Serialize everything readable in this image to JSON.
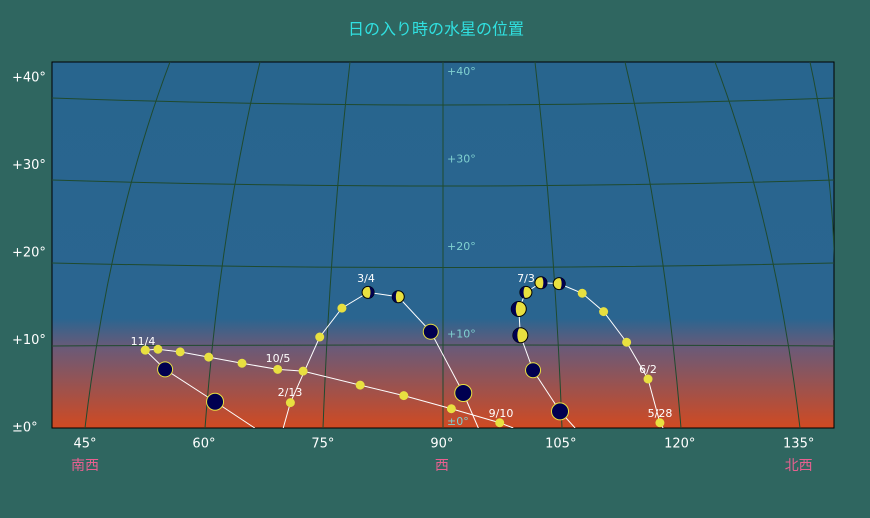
{
  "title": "日の入り時の水星の位置",
  "alt_labels": [
    {
      "value": 0,
      "label": "±0°"
    },
    {
      "value": 10,
      "label": "+10°"
    },
    {
      "value": 20,
      "label": "+20°"
    },
    {
      "value": 30,
      "label": "+30°"
    },
    {
      "value": 40,
      "label": "+40°"
    }
  ],
  "az_labels": [
    {
      "value": 45,
      "label": "45°"
    },
    {
      "value": 60,
      "label": "60°"
    },
    {
      "value": 75,
      "label": "75°"
    },
    {
      "value": 90,
      "label": "90°"
    },
    {
      "value": 105,
      "label": "105°"
    },
    {
      "value": 120,
      "label": "120°"
    },
    {
      "value": 135,
      "label": "135°"
    }
  ],
  "directions": [
    {
      "value": 45,
      "label": "南西"
    },
    {
      "value": 90,
      "label": "西"
    },
    {
      "value": 135,
      "label": "北西"
    }
  ],
  "tracks": [
    {
      "az": [
        52.6,
        55.1,
        61.4,
        66.4
      ],
      "alt": [
        8.9,
        6.7,
        3.0,
        0
      ],
      "colors": [
        "#e8e040",
        "#000050",
        "#000050",
        null
      ]
    },
    {
      "az": [
        52.6,
        54.2,
        57.0,
        60.6,
        64.8,
        69.3,
        72.5,
        79.7,
        85.2,
        91.2,
        97.3,
        99.0
      ],
      "alt": [
        8.9,
        9.0,
        8.7,
        8.1,
        7.4,
        6.7,
        6.5,
        4.9,
        3.7,
        2.2,
        0.6,
        0
      ],
      "colors": [
        "#e8e040",
        "#e8e040",
        "#e8e040",
        "#e8e040",
        "#e8e040",
        "#e8e040",
        "#e8e040",
        "#e8e040",
        "#e8e040",
        "#e8e040",
        "#e8e040",
        null
      ]
    },
    {
      "az": [
        70.0,
        70.9,
        74.6,
        77.4,
        80.7,
        84.5,
        88.6,
        92.7,
        94.6
      ],
      "alt": [
        0,
        2.9,
        10.4,
        13.7,
        15.5,
        15.0,
        11.0,
        4.0,
        0
      ],
      "colors": [
        null,
        "#e8e040",
        "#e8e040",
        "#e8e040",
        "#e8e060",
        "#e8e061",
        "#000050",
        "#000050",
        null
      ]
    },
    {
      "az": [
        117.9,
        117.5,
        116.0,
        113.3,
        110.4,
        107.7,
        104.8,
        102.5,
        100.6,
        99.7,
        99.9,
        101.5,
        104.9,
        106.8
      ],
      "alt": [
        0,
        0.6,
        5.6,
        9.8,
        13.3,
        15.4,
        16.5,
        16.6,
        15.5,
        13.6,
        10.6,
        6.6,
        1.9,
        0
      ],
      "colors": [
        null,
        "#e8e040",
        "#e8e040",
        "#e8e040",
        "#e8e040",
        "#e8e040",
        "#e8e060",
        "#e8e060",
        "#e8e061",
        "#000051",
        "#000051",
        "#000050",
        "#000050",
        null
      ]
    }
  ],
  "date_labels": [
    "11/4",
    "10/5",
    "2/13",
    "3/4",
    "9/10",
    "7/3",
    "6/2",
    "5/28"
  ]
}
